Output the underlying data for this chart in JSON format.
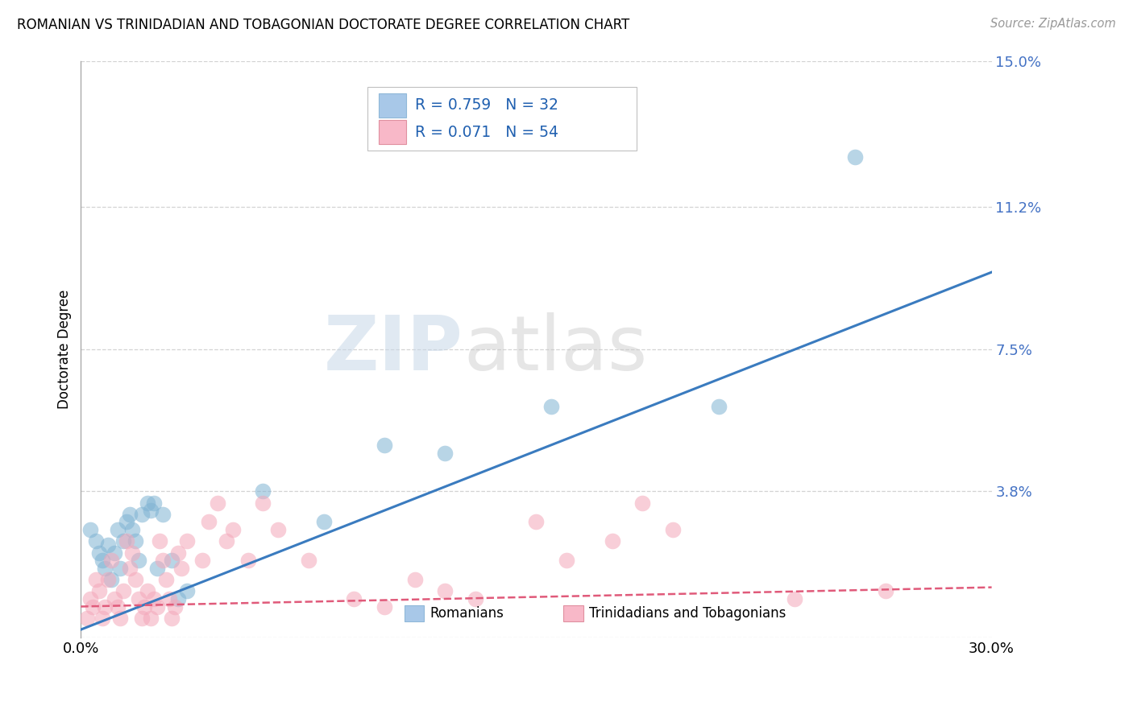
{
  "title": "ROMANIAN VS TRINIDADIAN AND TOBAGONIAN DOCTORATE DEGREE CORRELATION CHART",
  "source": "Source: ZipAtlas.com",
  "ylabel": "Doctorate Degree",
  "xlim": [
    0.0,
    0.3
  ],
  "ylim": [
    0.0,
    0.15
  ],
  "yticks": [
    0.0,
    0.038,
    0.075,
    0.112,
    0.15
  ],
  "ytick_labels": [
    "",
    "3.8%",
    "7.5%",
    "11.2%",
    "15.0%"
  ],
  "xticks": [
    0.0,
    0.1,
    0.2,
    0.3
  ],
  "xtick_labels": [
    "0.0%",
    "",
    "",
    "30.0%"
  ],
  "blue_color": "#7fb3d3",
  "pink_color": "#f4a7b9",
  "blue_line_color": "#3a7bbf",
  "pink_line_color": "#e05a7a",
  "watermark_zip": "ZIP",
  "watermark_atlas": "atlas",
  "blue_scatter": [
    [
      0.003,
      0.028
    ],
    [
      0.005,
      0.025
    ],
    [
      0.006,
      0.022
    ],
    [
      0.007,
      0.02
    ],
    [
      0.008,
      0.018
    ],
    [
      0.009,
      0.024
    ],
    [
      0.01,
      0.015
    ],
    [
      0.011,
      0.022
    ],
    [
      0.012,
      0.028
    ],
    [
      0.013,
      0.018
    ],
    [
      0.014,
      0.025
    ],
    [
      0.015,
      0.03
    ],
    [
      0.016,
      0.032
    ],
    [
      0.017,
      0.028
    ],
    [
      0.018,
      0.025
    ],
    [
      0.019,
      0.02
    ],
    [
      0.02,
      0.032
    ],
    [
      0.022,
      0.035
    ],
    [
      0.023,
      0.033
    ],
    [
      0.024,
      0.035
    ],
    [
      0.025,
      0.018
    ],
    [
      0.027,
      0.032
    ],
    [
      0.03,
      0.02
    ],
    [
      0.032,
      0.01
    ],
    [
      0.035,
      0.012
    ],
    [
      0.06,
      0.038
    ],
    [
      0.08,
      0.03
    ],
    [
      0.1,
      0.05
    ],
    [
      0.12,
      0.048
    ],
    [
      0.155,
      0.06
    ],
    [
      0.21,
      0.06
    ],
    [
      0.255,
      0.125
    ]
  ],
  "pink_scatter": [
    [
      0.002,
      0.005
    ],
    [
      0.003,
      0.01
    ],
    [
      0.004,
      0.008
    ],
    [
      0.005,
      0.015
    ],
    [
      0.006,
      0.012
    ],
    [
      0.007,
      0.005
    ],
    [
      0.008,
      0.008
    ],
    [
      0.009,
      0.015
    ],
    [
      0.01,
      0.02
    ],
    [
      0.011,
      0.01
    ],
    [
      0.012,
      0.008
    ],
    [
      0.013,
      0.005
    ],
    [
      0.014,
      0.012
    ],
    [
      0.015,
      0.025
    ],
    [
      0.016,
      0.018
    ],
    [
      0.017,
      0.022
    ],
    [
      0.018,
      0.015
    ],
    [
      0.019,
      0.01
    ],
    [
      0.02,
      0.005
    ],
    [
      0.021,
      0.008
    ],
    [
      0.022,
      0.012
    ],
    [
      0.023,
      0.005
    ],
    [
      0.024,
      0.01
    ],
    [
      0.025,
      0.008
    ],
    [
      0.026,
      0.025
    ],
    [
      0.027,
      0.02
    ],
    [
      0.028,
      0.015
    ],
    [
      0.029,
      0.01
    ],
    [
      0.03,
      0.005
    ],
    [
      0.031,
      0.008
    ],
    [
      0.032,
      0.022
    ],
    [
      0.033,
      0.018
    ],
    [
      0.035,
      0.025
    ],
    [
      0.04,
      0.02
    ],
    [
      0.042,
      0.03
    ],
    [
      0.045,
      0.035
    ],
    [
      0.048,
      0.025
    ],
    [
      0.05,
      0.028
    ],
    [
      0.055,
      0.02
    ],
    [
      0.06,
      0.035
    ],
    [
      0.065,
      0.028
    ],
    [
      0.075,
      0.02
    ],
    [
      0.09,
      0.01
    ],
    [
      0.1,
      0.008
    ],
    [
      0.11,
      0.015
    ],
    [
      0.12,
      0.012
    ],
    [
      0.13,
      0.01
    ],
    [
      0.15,
      0.03
    ],
    [
      0.16,
      0.02
    ],
    [
      0.175,
      0.025
    ],
    [
      0.185,
      0.035
    ],
    [
      0.195,
      0.028
    ],
    [
      0.235,
      0.01
    ],
    [
      0.265,
      0.012
    ]
  ],
  "blue_regline": [
    [
      0.0,
      0.002
    ],
    [
      0.3,
      0.095
    ]
  ],
  "pink_regline": [
    [
      0.0,
      0.008
    ],
    [
      0.3,
      0.013
    ]
  ]
}
